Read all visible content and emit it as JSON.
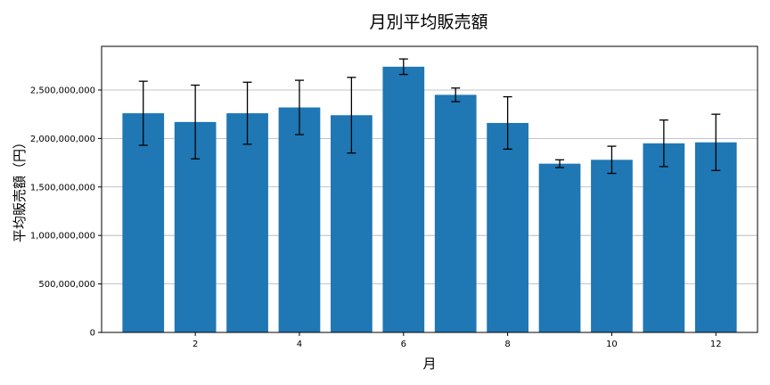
{
  "chart_data": {
    "type": "bar",
    "title": "月別平均販売額",
    "xlabel": "月",
    "ylabel": "平均販売額（円）",
    "x": [
      1,
      2,
      3,
      4,
      5,
      6,
      7,
      8,
      9,
      10,
      11,
      12
    ],
    "values": [
      2260000000,
      2170000000,
      2260000000,
      2320000000,
      2240000000,
      2740000000,
      2450000000,
      2160000000,
      1740000000,
      1780000000,
      1950000000,
      1960000000
    ],
    "error": [
      330000000,
      380000000,
      320000000,
      280000000,
      390000000,
      80000000,
      70000000,
      270000000,
      40000000,
      140000000,
      240000000,
      290000000
    ],
    "xticks": [
      2,
      4,
      6,
      8,
      10,
      12
    ],
    "xtick_labels": [
      "2",
      "4",
      "6",
      "8",
      "10",
      "12"
    ],
    "yticks": [
      0,
      500000000,
      1000000000,
      1500000000,
      2000000000,
      2500000000
    ],
    "ytick_labels": [
      "0",
      "500,000,000",
      "1,000,000,000",
      "1,500,000,000",
      "2,000,000,000",
      "2,500,000,000"
    ],
    "xlim": [
      0.2,
      12.8
    ],
    "ylim": [
      0,
      2950000000
    ],
    "grid": "y",
    "colors": {
      "bar": "#1f77b4",
      "error": "#000000",
      "grid": "#b0b0b0"
    }
  }
}
